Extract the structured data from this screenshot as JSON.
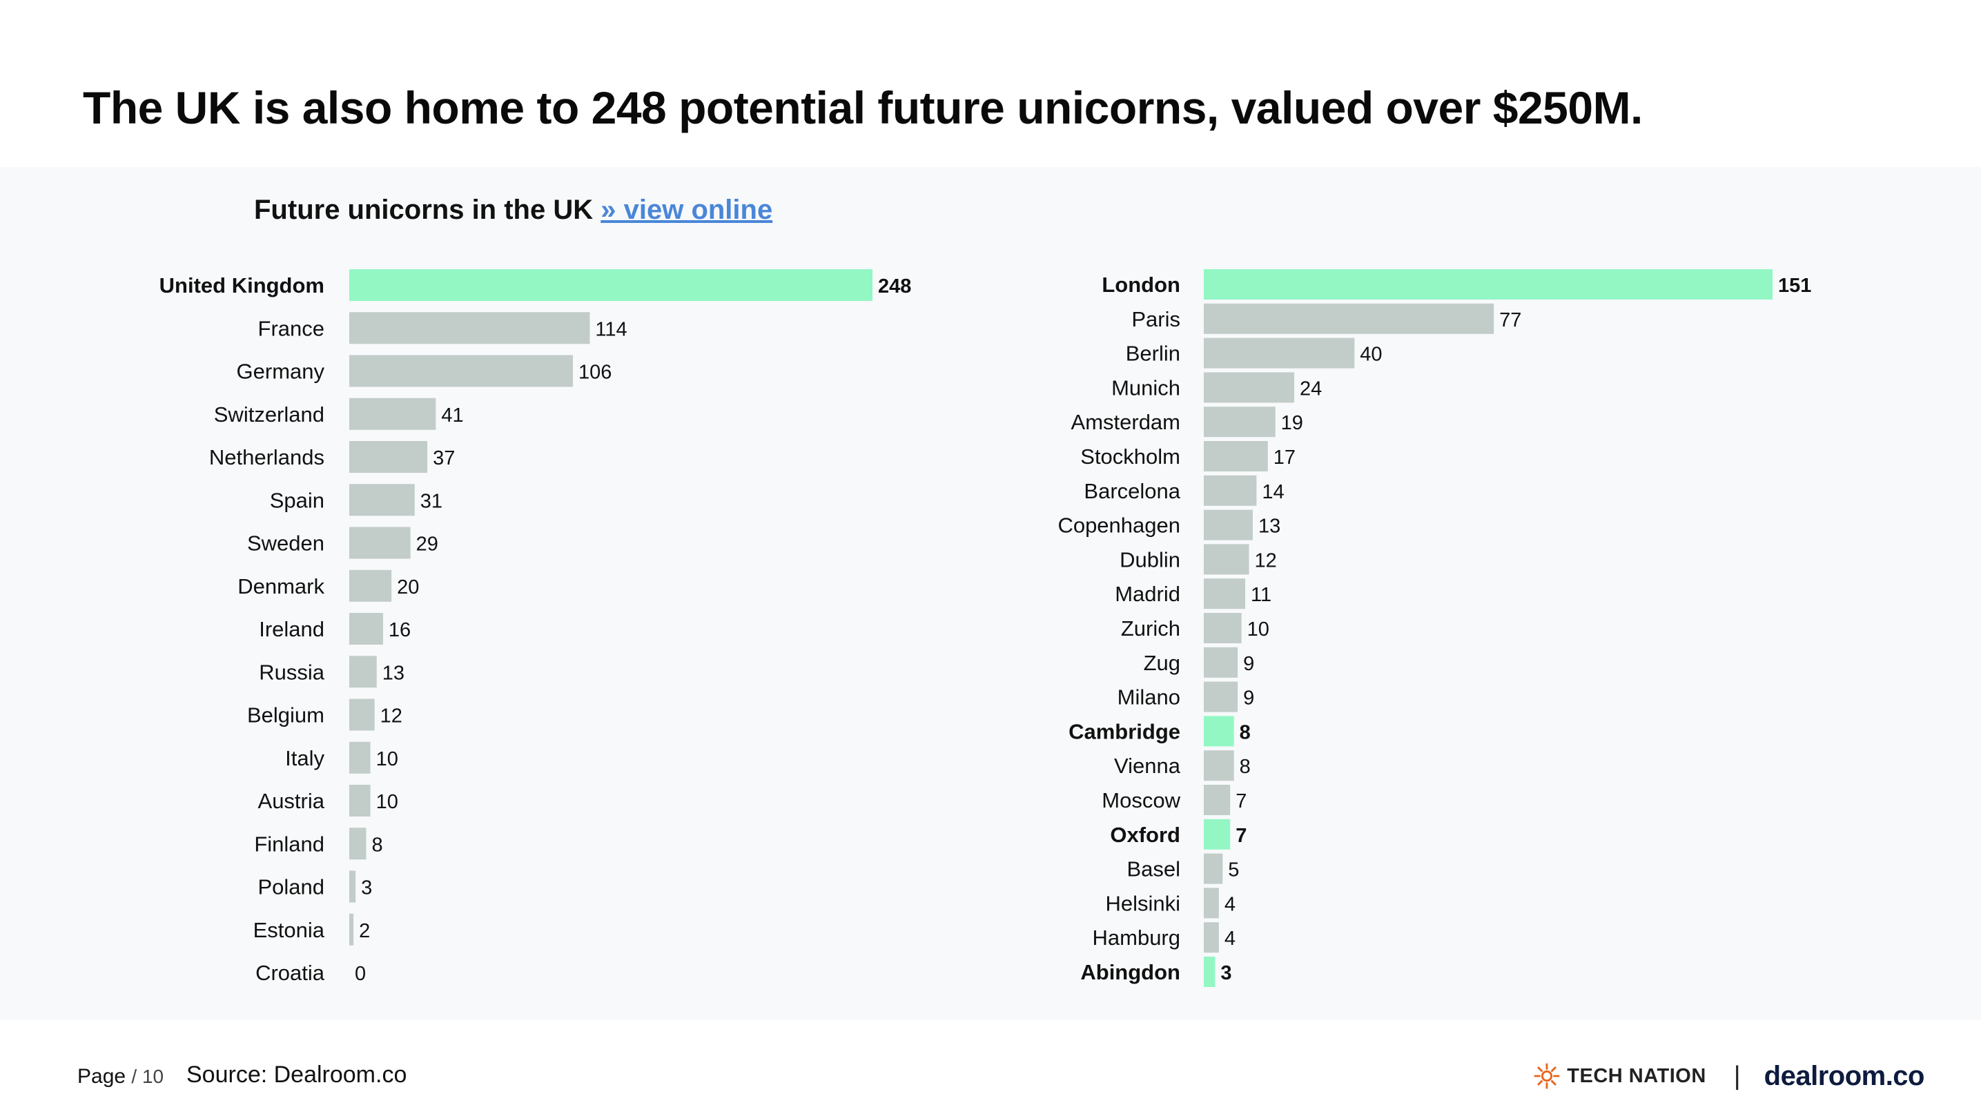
{
  "headline": "The UK is also home to 248 potential future unicorns, valued over $250M.",
  "chart_heading": {
    "title": "Future unicorns in the UK",
    "link_label": "» view online"
  },
  "footer": {
    "page_label": "Page",
    "page_number": "/ 10",
    "source": "Source: Dealroom.co",
    "logo_technation": "TECH NATION",
    "separator": "|",
    "logo_dealroom": "dealroom.co"
  },
  "colors": {
    "highlight": "#93f7c4",
    "bar": "#c2ccc8",
    "panel_background": "#f7f9fb",
    "link": "#4a86d8"
  },
  "chart_data": [
    {
      "type": "bar",
      "orientation": "horizontal",
      "title": "",
      "xlabel": "",
      "ylabel": "",
      "xlim": [
        0,
        248
      ],
      "grid": false,
      "categories": [
        "United Kingdom",
        "France",
        "Germany",
        "Switzerland",
        "Netherlands",
        "Spain",
        "Sweden",
        "Denmark",
        "Ireland",
        "Russia",
        "Belgium",
        "Italy",
        "Austria",
        "Finland",
        "Poland",
        "Estonia",
        "Croatia"
      ],
      "values": [
        248,
        114,
        106,
        41,
        37,
        31,
        29,
        20,
        16,
        13,
        12,
        10,
        10,
        8,
        3,
        2,
        0
      ],
      "highlighted": [
        "United Kingdom"
      ]
    },
    {
      "type": "bar",
      "orientation": "horizontal",
      "title": "",
      "xlabel": "",
      "ylabel": "",
      "xlim": [
        0,
        151
      ],
      "grid": false,
      "categories": [
        "London",
        "Paris",
        "Berlin",
        "Munich",
        "Amsterdam",
        "Stockholm",
        "Barcelona",
        "Copenhagen",
        "Dublin",
        "Madrid",
        "Zurich",
        "Zug",
        "Milano",
        "Cambridge",
        "Vienna",
        "Moscow",
        "Oxford",
        "Basel",
        "Helsinki",
        "Hamburg",
        "Abingdon"
      ],
      "values": [
        151,
        77,
        40,
        24,
        19,
        17,
        14,
        13,
        12,
        11,
        10,
        9,
        9,
        8,
        8,
        7,
        7,
        5,
        4,
        4,
        3
      ],
      "highlighted": [
        "London",
        "Cambridge",
        "Oxford",
        "Abingdon"
      ]
    }
  ]
}
